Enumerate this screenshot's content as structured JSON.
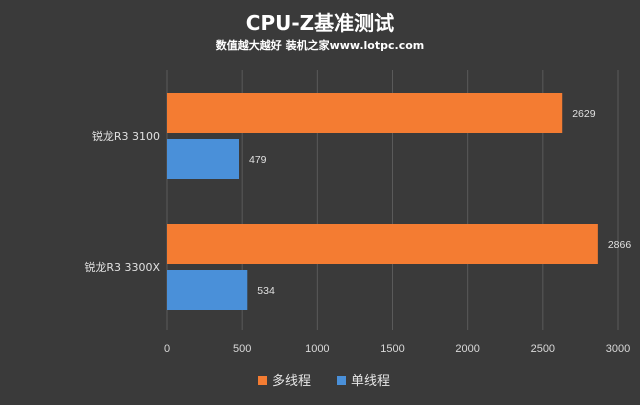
{
  "chart_data": {
    "type": "bar",
    "orientation": "horizontal",
    "title": "CPU-Z基准测试",
    "subtitle": "数值越大越好 装机之家www.lotpc.com",
    "categories": [
      "锐龙R3 3100",
      "锐龙R3 3300X"
    ],
    "series": [
      {
        "name": "多线程",
        "values": [
          2629,
          2866
        ],
        "color": "#f47c32"
      },
      {
        "name": "单线程",
        "values": [
          479,
          534
        ],
        "color": "#4a90d9"
      }
    ],
    "xlim": [
      0,
      3000
    ],
    "xticks": [
      0,
      500,
      1000,
      1500,
      2000,
      2500,
      3000
    ],
    "grid": true,
    "legend_position": "bottom-center",
    "background": "#3a3a3a",
    "grid_color": "#5a5a5a"
  }
}
